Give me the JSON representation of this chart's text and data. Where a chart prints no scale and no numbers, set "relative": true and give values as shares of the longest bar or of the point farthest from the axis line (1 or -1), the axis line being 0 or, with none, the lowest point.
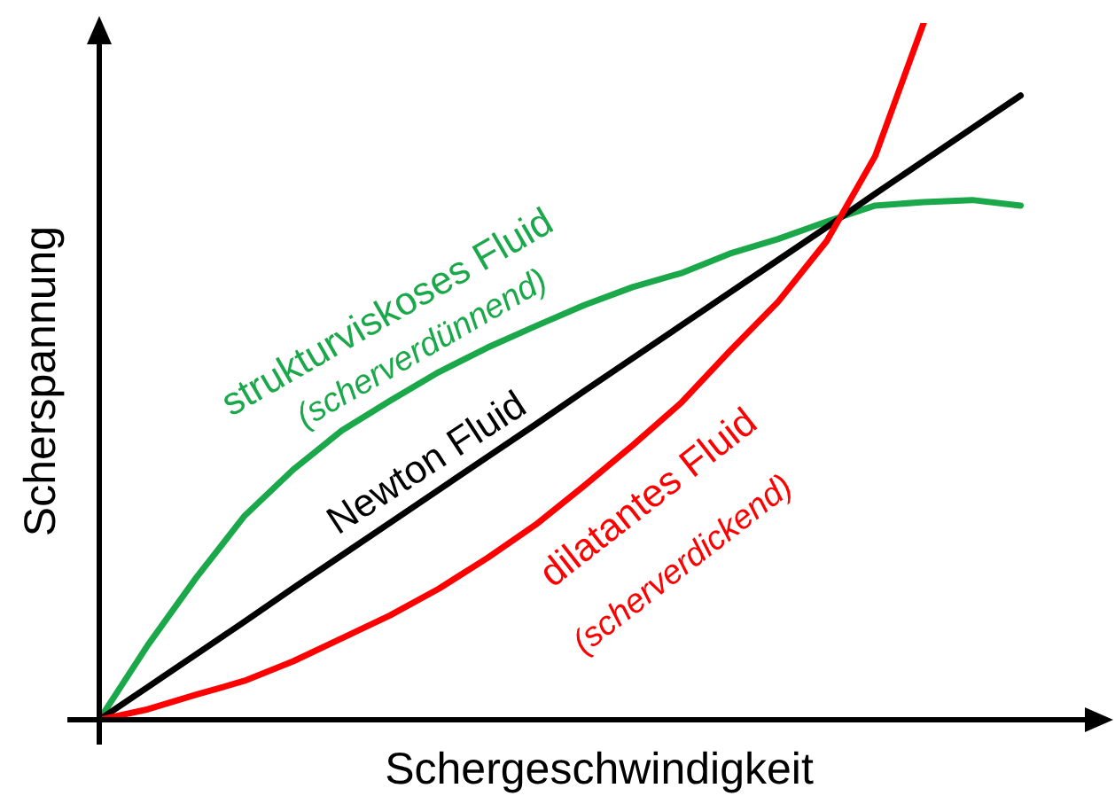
{
  "chart_data": {
    "type": "line",
    "relative": true,
    "xlabel": "Schergeschwindigkeit",
    "ylabel": "Scherspannung",
    "grid": false,
    "legend": false,
    "marker": "none",
    "line_style": "solid",
    "categories": [
      null,
      null,
      null,
      null,
      null,
      null,
      null,
      null,
      null,
      null,
      null,
      null,
      null,
      null,
      null,
      null,
      null,
      null,
      null,
      null
    ],
    "series": [
      {
        "name": "strukturviskoses Fluid",
        "color": "#1ba84a",
        "values": [
          0,
          0.107,
          0.204,
          0.293,
          0.359,
          0.415,
          0.458,
          0.499,
          0.534,
          0.565,
          0.595,
          0.621,
          0.641,
          0.669,
          0.69,
          0.715,
          0.738,
          0.743,
          0.746,
          0.738
        ]
      },
      {
        "name": "Newton Fluid",
        "color": "#000000",
        "values": [
          0,
          0.047,
          0.094,
          0.141,
          0.189,
          0.236,
          0.283,
          0.33,
          0.377,
          0.424,
          0.472,
          0.519,
          0.566,
          0.613,
          0.66,
          0.707,
          0.755,
          0.802,
          0.849,
          0.896
        ]
      },
      {
        "name": "dilatantes Fluid",
        "color": "#ff0000",
        "values": [
          0,
          0.015,
          0.036,
          0.056,
          0.084,
          0.117,
          0.15,
          0.188,
          0.232,
          0.28,
          0.336,
          0.394,
          0.455,
          0.529,
          0.6,
          0.687,
          0.809,
          1,
          null,
          null
        ]
      }
    ],
    "annotations": [
      "(scherverdünnend)",
      "(scherverdickend)"
    ]
  }
}
